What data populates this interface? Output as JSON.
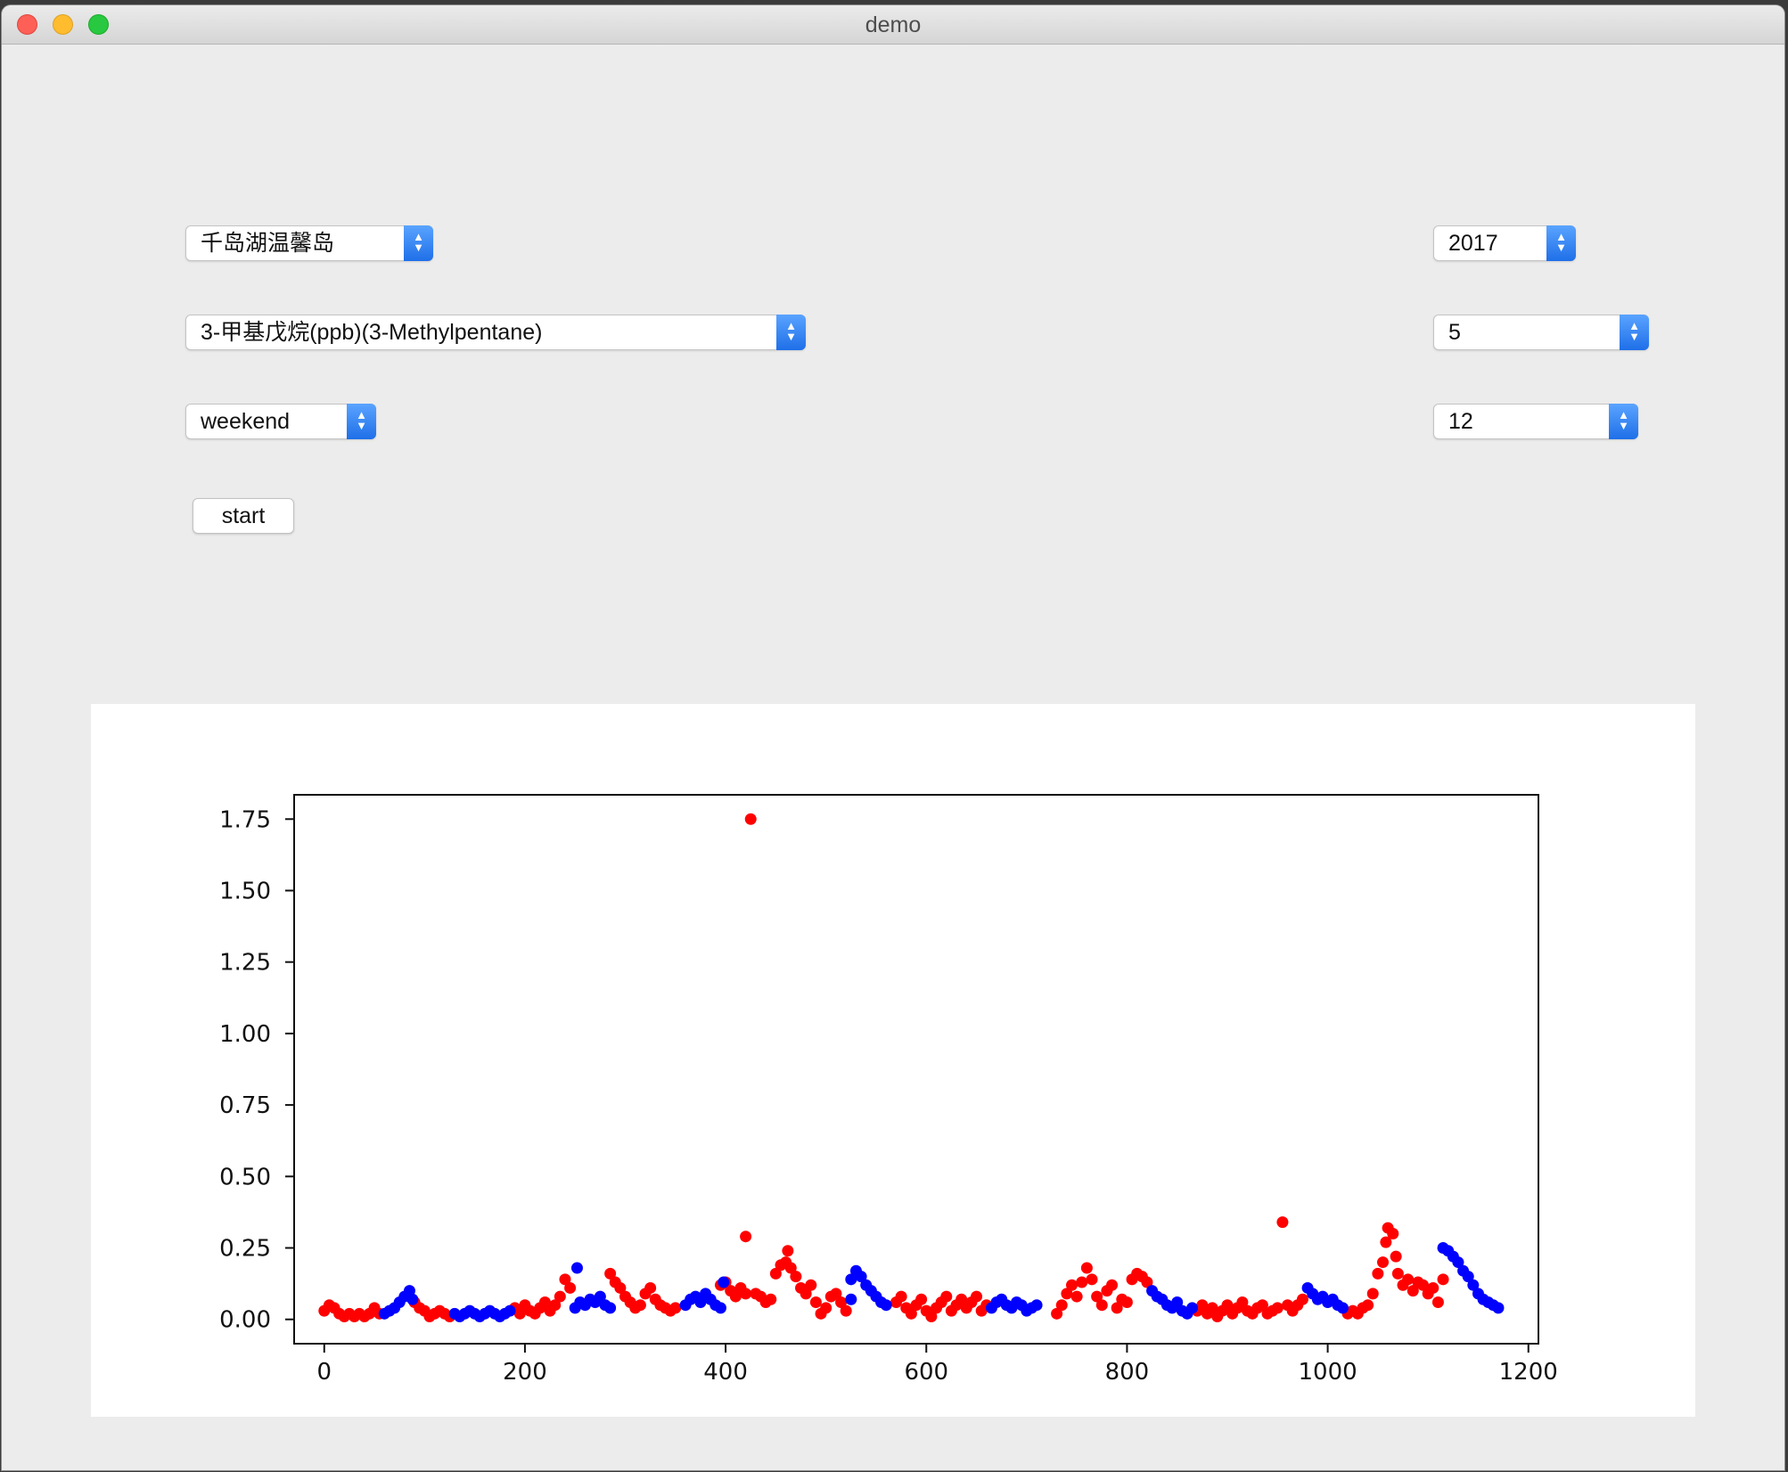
{
  "window": {
    "title": "demo"
  },
  "controls": {
    "station": {
      "value": "千岛湖温馨岛"
    },
    "pollutant": {
      "value": "3-甲基戊烷(ppb)(3-Methylpentane)"
    },
    "period": {
      "value": "weekend"
    },
    "year": {
      "value": "2017"
    },
    "month": {
      "value": "5"
    },
    "day": {
      "value": "12"
    },
    "start_label": "start"
  },
  "colors": {
    "red_series": "#ff0000",
    "blue_series": "#0000ff",
    "accent": "#2f7ff0"
  },
  "chart_data": {
    "type": "scatter",
    "title": "",
    "xlabel": "",
    "ylabel": "",
    "xlim": [
      -30,
      1210
    ],
    "ylim": [
      -0.085,
      1.835
    ],
    "xticks": [
      0,
      200,
      400,
      600,
      800,
      1000,
      1200
    ],
    "yticks": [
      0.0,
      0.25,
      0.5,
      0.75,
      1.0,
      1.25,
      1.5,
      1.75
    ],
    "xtick_labels": [
      "0",
      "200",
      "400",
      "600",
      "800",
      "1000",
      "1200"
    ],
    "ytick_labels": [
      "0.00",
      "0.25",
      "0.50",
      "0.75",
      "1.00",
      "1.25",
      "1.50",
      "1.75"
    ],
    "grid": false,
    "legend": "none",
    "series": [
      {
        "color": "red",
        "points": [
          [
            0,
            0.03
          ],
          [
            5,
            0.05
          ],
          [
            10,
            0.04
          ],
          [
            15,
            0.02
          ],
          [
            20,
            0.01
          ],
          [
            25,
            0.02
          ],
          [
            30,
            0.01
          ],
          [
            35,
            0.02
          ],
          [
            40,
            0.01
          ],
          [
            45,
            0.02
          ],
          [
            50,
            0.04
          ],
          [
            55,
            0.02
          ],
          [
            90,
            0.06
          ],
          [
            95,
            0.04
          ],
          [
            100,
            0.03
          ],
          [
            105,
            0.01
          ],
          [
            110,
            0.02
          ],
          [
            115,
            0.03
          ],
          [
            120,
            0.02
          ],
          [
            125,
            0.01
          ],
          [
            190,
            0.04
          ],
          [
            195,
            0.02
          ],
          [
            200,
            0.05
          ],
          [
            205,
            0.03
          ],
          [
            210,
            0.02
          ],
          [
            215,
            0.04
          ],
          [
            220,
            0.06
          ],
          [
            225,
            0.03
          ],
          [
            230,
            0.05
          ],
          [
            235,
            0.08
          ],
          [
            240,
            0.14
          ],
          [
            245,
            0.11
          ],
          [
            285,
            0.16
          ],
          [
            290,
            0.13
          ],
          [
            295,
            0.11
          ],
          [
            300,
            0.08
          ],
          [
            305,
            0.06
          ],
          [
            310,
            0.04
          ],
          [
            315,
            0.05
          ],
          [
            320,
            0.09
          ],
          [
            325,
            0.11
          ],
          [
            330,
            0.07
          ],
          [
            335,
            0.05
          ],
          [
            340,
            0.04
          ],
          [
            345,
            0.03
          ],
          [
            350,
            0.04
          ],
          [
            395,
            0.12
          ],
          [
            400,
            0.13
          ],
          [
            405,
            0.1
          ],
          [
            410,
            0.08
          ],
          [
            415,
            0.11
          ],
          [
            420,
            0.09
          ],
          [
            425,
            1.75
          ],
          [
            420,
            0.29
          ],
          [
            430,
            0.09
          ],
          [
            435,
            0.08
          ],
          [
            440,
            0.06
          ],
          [
            445,
            0.07
          ],
          [
            450,
            0.16
          ],
          [
            455,
            0.19
          ],
          [
            460,
            0.2
          ],
          [
            462,
            0.24
          ],
          [
            465,
            0.18
          ],
          [
            470,
            0.15
          ],
          [
            475,
            0.11
          ],
          [
            480,
            0.09
          ],
          [
            485,
            0.12
          ],
          [
            490,
            0.06
          ],
          [
            495,
            0.02
          ],
          [
            500,
            0.04
          ],
          [
            505,
            0.08
          ],
          [
            510,
            0.09
          ],
          [
            515,
            0.06
          ],
          [
            520,
            0.03
          ],
          [
            570,
            0.06
          ],
          [
            575,
            0.08
          ],
          [
            580,
            0.04
          ],
          [
            585,
            0.02
          ],
          [
            590,
            0.05
          ],
          [
            595,
            0.07
          ],
          [
            600,
            0.03
          ],
          [
            605,
            0.01
          ],
          [
            610,
            0.04
          ],
          [
            615,
            0.06
          ],
          [
            620,
            0.08
          ],
          [
            625,
            0.03
          ],
          [
            630,
            0.05
          ],
          [
            635,
            0.07
          ],
          [
            640,
            0.04
          ],
          [
            645,
            0.06
          ],
          [
            650,
            0.08
          ],
          [
            655,
            0.03
          ],
          [
            660,
            0.05
          ],
          [
            730,
            0.02
          ],
          [
            735,
            0.05
          ],
          [
            740,
            0.09
          ],
          [
            745,
            0.12
          ],
          [
            750,
            0.08
          ],
          [
            755,
            0.13
          ],
          [
            760,
            0.18
          ],
          [
            765,
            0.14
          ],
          [
            770,
            0.08
          ],
          [
            775,
            0.05
          ],
          [
            780,
            0.1
          ],
          [
            785,
            0.12
          ],
          [
            790,
            0.04
          ],
          [
            795,
            0.07
          ],
          [
            800,
            0.06
          ],
          [
            805,
            0.14
          ],
          [
            810,
            0.16
          ],
          [
            815,
            0.15
          ],
          [
            820,
            0.13
          ],
          [
            870,
            0.03
          ],
          [
            875,
            0.05
          ],
          [
            880,
            0.02
          ],
          [
            885,
            0.04
          ],
          [
            890,
            0.01
          ],
          [
            895,
            0.03
          ],
          [
            900,
            0.05
          ],
          [
            905,
            0.02
          ],
          [
            910,
            0.04
          ],
          [
            915,
            0.06
          ],
          [
            920,
            0.03
          ],
          [
            925,
            0.02
          ],
          [
            930,
            0.04
          ],
          [
            935,
            0.05
          ],
          [
            940,
            0.02
          ],
          [
            945,
            0.03
          ],
          [
            950,
            0.04
          ],
          [
            955,
            0.34
          ],
          [
            960,
            0.05
          ],
          [
            965,
            0.03
          ],
          [
            970,
            0.05
          ],
          [
            975,
            0.07
          ],
          [
            1020,
            0.02
          ],
          [
            1025,
            0.03
          ],
          [
            1030,
            0.02
          ],
          [
            1035,
            0.04
          ],
          [
            1040,
            0.05
          ],
          [
            1045,
            0.09
          ],
          [
            1050,
            0.16
          ],
          [
            1055,
            0.2
          ],
          [
            1058,
            0.27
          ],
          [
            1060,
            0.32
          ],
          [
            1065,
            0.3
          ],
          [
            1068,
            0.22
          ],
          [
            1070,
            0.16
          ],
          [
            1075,
            0.12
          ],
          [
            1080,
            0.14
          ],
          [
            1085,
            0.1
          ],
          [
            1090,
            0.13
          ],
          [
            1095,
            0.12
          ],
          [
            1100,
            0.09
          ],
          [
            1105,
            0.11
          ],
          [
            1110,
            0.06
          ],
          [
            1115,
            0.14
          ]
        ]
      },
      {
        "color": "blue",
        "points": [
          [
            60,
            0.02
          ],
          [
            65,
            0.03
          ],
          [
            70,
            0.04
          ],
          [
            75,
            0.06
          ],
          [
            80,
            0.08
          ],
          [
            85,
            0.1
          ],
          [
            88,
            0.07
          ],
          [
            130,
            0.02
          ],
          [
            135,
            0.01
          ],
          [
            140,
            0.02
          ],
          [
            145,
            0.03
          ],
          [
            150,
            0.02
          ],
          [
            155,
            0.01
          ],
          [
            160,
            0.02
          ],
          [
            165,
            0.03
          ],
          [
            170,
            0.02
          ],
          [
            175,
            0.01
          ],
          [
            180,
            0.02
          ],
          [
            185,
            0.03
          ],
          [
            250,
            0.04
          ],
          [
            255,
            0.06
          ],
          [
            260,
            0.05
          ],
          [
            265,
            0.07
          ],
          [
            270,
            0.06
          ],
          [
            275,
            0.08
          ],
          [
            280,
            0.05
          ],
          [
            285,
            0.04
          ],
          [
            252,
            0.18
          ],
          [
            360,
            0.05
          ],
          [
            365,
            0.07
          ],
          [
            370,
            0.08
          ],
          [
            375,
            0.06
          ],
          [
            380,
            0.09
          ],
          [
            385,
            0.07
          ],
          [
            390,
            0.05
          ],
          [
            395,
            0.04
          ],
          [
            398,
            0.13
          ],
          [
            525,
            0.14
          ],
          [
            530,
            0.17
          ],
          [
            535,
            0.15
          ],
          [
            540,
            0.12
          ],
          [
            545,
            0.1
          ],
          [
            550,
            0.08
          ],
          [
            555,
            0.06
          ],
          [
            560,
            0.05
          ],
          [
            525,
            0.07
          ],
          [
            665,
            0.04
          ],
          [
            670,
            0.06
          ],
          [
            675,
            0.07
          ],
          [
            680,
            0.05
          ],
          [
            685,
            0.04
          ],
          [
            690,
            0.06
          ],
          [
            695,
            0.05
          ],
          [
            700,
            0.03
          ],
          [
            705,
            0.04
          ],
          [
            710,
            0.05
          ],
          [
            825,
            0.1
          ],
          [
            830,
            0.08
          ],
          [
            835,
            0.07
          ],
          [
            840,
            0.05
          ],
          [
            845,
            0.04
          ],
          [
            850,
            0.06
          ],
          [
            855,
            0.03
          ],
          [
            860,
            0.02
          ],
          [
            865,
            0.04
          ],
          [
            980,
            0.11
          ],
          [
            985,
            0.09
          ],
          [
            990,
            0.07
          ],
          [
            995,
            0.08
          ],
          [
            1000,
            0.06
          ],
          [
            1005,
            0.07
          ],
          [
            1010,
            0.05
          ],
          [
            1015,
            0.04
          ],
          [
            1115,
            0.25
          ],
          [
            1120,
            0.24
          ],
          [
            1125,
            0.22
          ],
          [
            1130,
            0.2
          ],
          [
            1135,
            0.17
          ],
          [
            1140,
            0.15
          ],
          [
            1145,
            0.12
          ],
          [
            1150,
            0.09
          ],
          [
            1155,
            0.07
          ],
          [
            1160,
            0.06
          ],
          [
            1165,
            0.05
          ],
          [
            1170,
            0.04
          ]
        ]
      }
    ]
  }
}
